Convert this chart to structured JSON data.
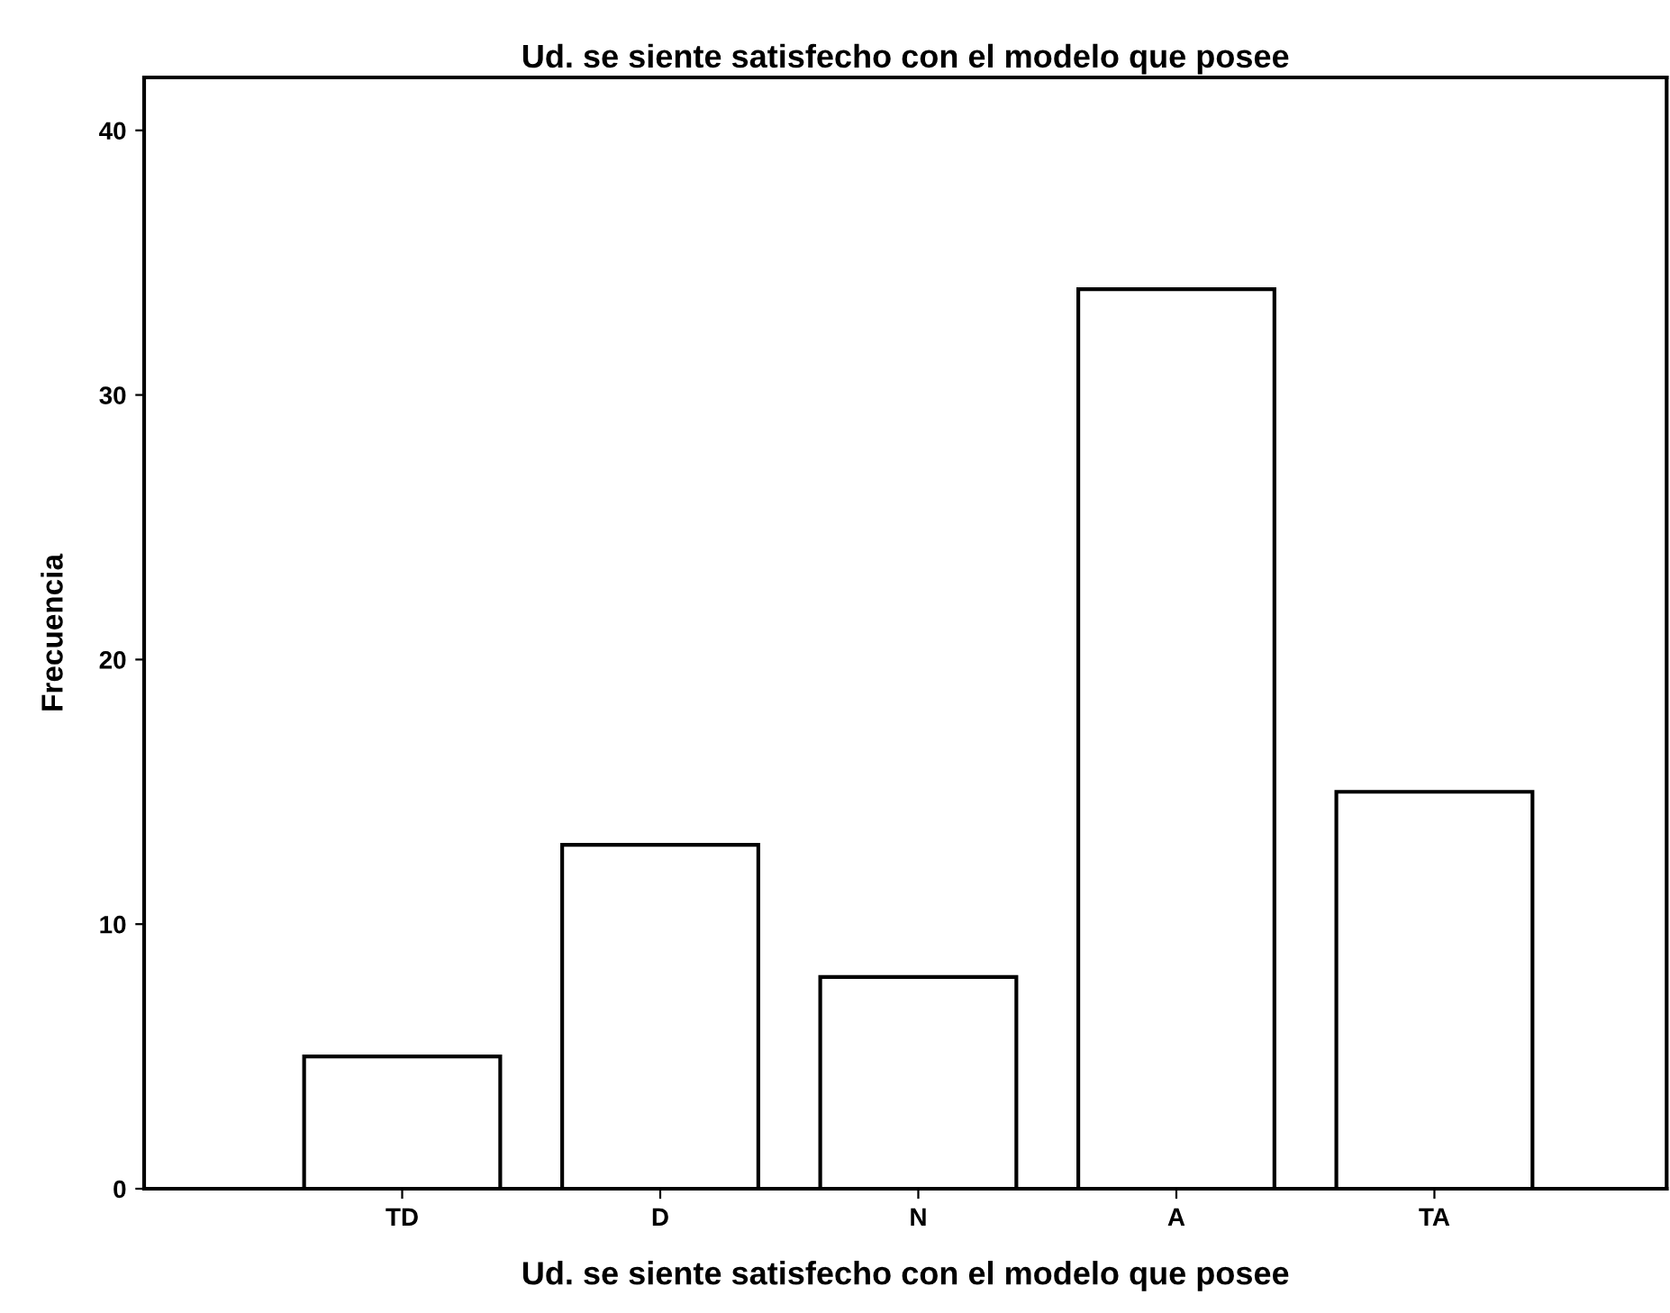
{
  "chart_data": {
    "type": "bar",
    "title": "Ud. se siente satisfecho con el modelo que posee",
    "xlabel": "Ud. se siente satisfecho con el modelo que posee",
    "ylabel": "Frecuencia",
    "categories": [
      "TD",
      "D",
      "N",
      "A",
      "TA"
    ],
    "values": [
      5,
      13,
      8,
      34,
      15
    ],
    "color": "#ffffff",
    "ylim": [
      0,
      42
    ],
    "yticks": [
      0,
      10,
      20,
      30,
      40
    ],
    "grid": false
  }
}
